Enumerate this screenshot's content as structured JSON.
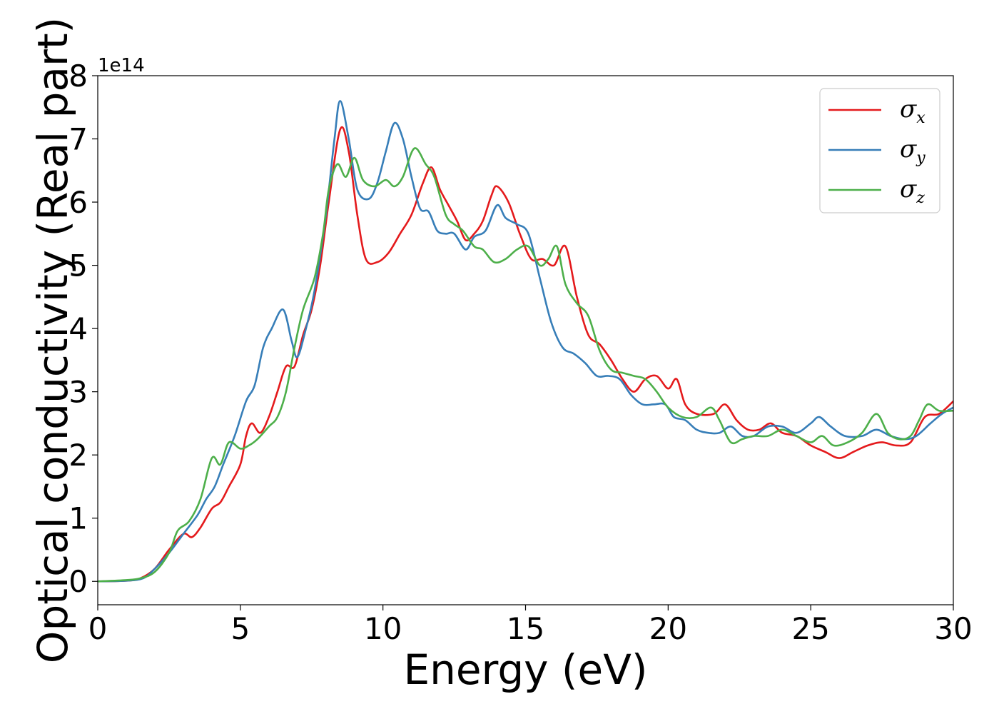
{
  "chart_data": {
    "type": "line",
    "title": "",
    "xlabel": "Energy (eV)",
    "ylabel": "Optical conductivity (Real part)",
    "y_offset_text": "1e14",
    "xlim": [
      0,
      30
    ],
    "ylim": [
      -0.37,
      8.0
    ],
    "xticks": [
      0,
      5,
      10,
      15,
      20,
      25,
      30
    ],
    "yticks": [
      0,
      1,
      2,
      3,
      4,
      5,
      6,
      7,
      8
    ],
    "grid": false,
    "legend_position": "top-right",
    "series": [
      {
        "name": "σ",
        "name_sub": "x",
        "color": "#e41a1c",
        "points": [
          [
            0,
            0
          ],
          [
            1,
            0.01
          ],
          [
            1.5,
            0.05
          ],
          [
            2,
            0.2
          ],
          [
            2.5,
            0.5
          ],
          [
            3,
            0.75
          ],
          [
            3.3,
            0.7
          ],
          [
            3.6,
            0.85
          ],
          [
            4,
            1.15
          ],
          [
            4.3,
            1.25
          ],
          [
            4.6,
            1.5
          ],
          [
            5,
            1.85
          ],
          [
            5.2,
            2.3
          ],
          [
            5.4,
            2.5
          ],
          [
            5.7,
            2.35
          ],
          [
            6,
            2.6
          ],
          [
            6.3,
            3.0
          ],
          [
            6.6,
            3.4
          ],
          [
            6.9,
            3.4
          ],
          [
            7.2,
            3.9
          ],
          [
            7.5,
            4.3
          ],
          [
            7.8,
            5.0
          ],
          [
            8.1,
            6.0
          ],
          [
            8.5,
            7.15
          ],
          [
            8.8,
            6.8
          ],
          [
            9.1,
            5.8
          ],
          [
            9.4,
            5.1
          ],
          [
            9.8,
            5.05
          ],
          [
            10.2,
            5.2
          ],
          [
            10.6,
            5.5
          ],
          [
            11,
            5.8
          ],
          [
            11.4,
            6.3
          ],
          [
            11.7,
            6.55
          ],
          [
            12,
            6.2
          ],
          [
            12.3,
            5.95
          ],
          [
            12.6,
            5.7
          ],
          [
            12.9,
            5.4
          ],
          [
            13.2,
            5.5
          ],
          [
            13.5,
            5.7
          ],
          [
            13.8,
            6.1
          ],
          [
            14,
            6.25
          ],
          [
            14.4,
            6.0
          ],
          [
            14.8,
            5.5
          ],
          [
            15.2,
            5.1
          ],
          [
            15.6,
            5.1
          ],
          [
            16,
            5.0
          ],
          [
            16.4,
            5.3
          ],
          [
            16.8,
            4.5
          ],
          [
            17.2,
            3.9
          ],
          [
            17.6,
            3.75
          ],
          [
            18,
            3.5
          ],
          [
            18.4,
            3.2
          ],
          [
            18.8,
            3.0
          ],
          [
            19.2,
            3.2
          ],
          [
            19.6,
            3.25
          ],
          [
            20,
            3.05
          ],
          [
            20.3,
            3.2
          ],
          [
            20.6,
            2.8
          ],
          [
            21,
            2.65
          ],
          [
            21.6,
            2.65
          ],
          [
            22,
            2.8
          ],
          [
            22.4,
            2.55
          ],
          [
            22.8,
            2.4
          ],
          [
            23.2,
            2.4
          ],
          [
            23.6,
            2.5
          ],
          [
            24,
            2.35
          ],
          [
            24.5,
            2.3
          ],
          [
            25,
            2.15
          ],
          [
            25.5,
            2.05
          ],
          [
            26,
            1.95
          ],
          [
            26.5,
            2.05
          ],
          [
            27,
            2.15
          ],
          [
            27.5,
            2.2
          ],
          [
            28,
            2.15
          ],
          [
            28.5,
            2.2
          ],
          [
            29,
            2.6
          ],
          [
            29.5,
            2.65
          ],
          [
            30,
            2.85
          ]
        ]
      },
      {
        "name": "σ",
        "name_sub": "y",
        "color": "#377eb8",
        "points": [
          [
            0,
            0
          ],
          [
            1,
            0.01
          ],
          [
            1.6,
            0.05
          ],
          [
            2,
            0.2
          ],
          [
            2.5,
            0.45
          ],
          [
            3,
            0.75
          ],
          [
            3.5,
            1.05
          ],
          [
            3.8,
            1.3
          ],
          [
            4.1,
            1.5
          ],
          [
            4.4,
            1.85
          ],
          [
            4.8,
            2.3
          ],
          [
            5.2,
            2.85
          ],
          [
            5.5,
            3.1
          ],
          [
            5.8,
            3.7
          ],
          [
            6.1,
            4.0
          ],
          [
            6.5,
            4.3
          ],
          [
            6.8,
            3.8
          ],
          [
            7,
            3.55
          ],
          [
            7.3,
            4.0
          ],
          [
            7.6,
            4.6
          ],
          [
            8,
            5.8
          ],
          [
            8.3,
            7.0
          ],
          [
            8.5,
            7.6
          ],
          [
            8.8,
            7.0
          ],
          [
            9.1,
            6.2
          ],
          [
            9.5,
            6.05
          ],
          [
            9.8,
            6.3
          ],
          [
            10.1,
            6.8
          ],
          [
            10.4,
            7.25
          ],
          [
            10.7,
            7.0
          ],
          [
            11,
            6.4
          ],
          [
            11.3,
            5.9
          ],
          [
            11.6,
            5.85
          ],
          [
            11.9,
            5.55
          ],
          [
            12.2,
            5.5
          ],
          [
            12.5,
            5.5
          ],
          [
            12.9,
            5.25
          ],
          [
            13.2,
            5.45
          ],
          [
            13.6,
            5.55
          ],
          [
            14,
            5.95
          ],
          [
            14.3,
            5.75
          ],
          [
            14.7,
            5.65
          ],
          [
            15.1,
            5.5
          ],
          [
            15.5,
            4.8
          ],
          [
            15.9,
            4.1
          ],
          [
            16.3,
            3.7
          ],
          [
            16.7,
            3.6
          ],
          [
            17.1,
            3.45
          ],
          [
            17.5,
            3.25
          ],
          [
            17.9,
            3.25
          ],
          [
            18.3,
            3.2
          ],
          [
            18.7,
            2.95
          ],
          [
            19.1,
            2.8
          ],
          [
            19.5,
            2.8
          ],
          [
            19.9,
            2.8
          ],
          [
            20.2,
            2.6
          ],
          [
            20.6,
            2.55
          ],
          [
            21,
            2.4
          ],
          [
            21.4,
            2.35
          ],
          [
            21.8,
            2.35
          ],
          [
            22.2,
            2.45
          ],
          [
            22.6,
            2.3
          ],
          [
            23,
            2.3
          ],
          [
            23.5,
            2.45
          ],
          [
            24,
            2.45
          ],
          [
            24.5,
            2.35
          ],
          [
            25,
            2.5
          ],
          [
            25.3,
            2.6
          ],
          [
            25.7,
            2.45
          ],
          [
            26.2,
            2.3
          ],
          [
            26.8,
            2.3
          ],
          [
            27.3,
            2.4
          ],
          [
            27.8,
            2.3
          ],
          [
            28.3,
            2.25
          ],
          [
            28.7,
            2.3
          ],
          [
            29.2,
            2.5
          ],
          [
            29.6,
            2.65
          ],
          [
            30,
            2.75
          ]
        ]
      },
      {
        "name": "σ",
        "name_sub": "z",
        "color": "#4daf4a",
        "points": [
          [
            0,
            0
          ],
          [
            1,
            0.02
          ],
          [
            1.5,
            0.05
          ],
          [
            2,
            0.15
          ],
          [
            2.5,
            0.45
          ],
          [
            2.8,
            0.8
          ],
          [
            3.2,
            0.95
          ],
          [
            3.6,
            1.3
          ],
          [
            4,
            1.95
          ],
          [
            4.3,
            1.85
          ],
          [
            4.6,
            2.2
          ],
          [
            5,
            2.1
          ],
          [
            5.3,
            2.15
          ],
          [
            5.6,
            2.25
          ],
          [
            6,
            2.45
          ],
          [
            6.3,
            2.6
          ],
          [
            6.6,
            3.0
          ],
          [
            6.9,
            3.7
          ],
          [
            7.2,
            4.3
          ],
          [
            7.6,
            4.8
          ],
          [
            7.9,
            5.5
          ],
          [
            8.1,
            6.2
          ],
          [
            8.4,
            6.6
          ],
          [
            8.7,
            6.4
          ],
          [
            9,
            6.7
          ],
          [
            9.3,
            6.35
          ],
          [
            9.7,
            6.25
          ],
          [
            10.1,
            6.35
          ],
          [
            10.4,
            6.25
          ],
          [
            10.7,
            6.4
          ],
          [
            11.1,
            6.85
          ],
          [
            11.5,
            6.6
          ],
          [
            11.8,
            6.4
          ],
          [
            12.2,
            5.8
          ],
          [
            12.5,
            5.65
          ],
          [
            12.8,
            5.55
          ],
          [
            13.2,
            5.3
          ],
          [
            13.5,
            5.25
          ],
          [
            13.9,
            5.05
          ],
          [
            14.3,
            5.1
          ],
          [
            14.7,
            5.25
          ],
          [
            15.1,
            5.3
          ],
          [
            15.5,
            5.0
          ],
          [
            15.8,
            5.1
          ],
          [
            16.1,
            5.3
          ],
          [
            16.4,
            4.7
          ],
          [
            16.8,
            4.4
          ],
          [
            17.2,
            4.2
          ],
          [
            17.6,
            3.65
          ],
          [
            18,
            3.35
          ],
          [
            18.4,
            3.3
          ],
          [
            18.8,
            3.25
          ],
          [
            19.2,
            3.2
          ],
          [
            19.6,
            3.0
          ],
          [
            20,
            2.75
          ],
          [
            20.5,
            2.6
          ],
          [
            21,
            2.6
          ],
          [
            21.5,
            2.75
          ],
          [
            21.8,
            2.55
          ],
          [
            22.2,
            2.2
          ],
          [
            22.6,
            2.25
          ],
          [
            23,
            2.3
          ],
          [
            23.5,
            2.3
          ],
          [
            24,
            2.4
          ],
          [
            24.5,
            2.3
          ],
          [
            25,
            2.2
          ],
          [
            25.4,
            2.3
          ],
          [
            25.8,
            2.15
          ],
          [
            26.3,
            2.2
          ],
          [
            26.8,
            2.35
          ],
          [
            27.3,
            2.65
          ],
          [
            27.7,
            2.35
          ],
          [
            28.1,
            2.25
          ],
          [
            28.5,
            2.3
          ],
          [
            28.8,
            2.55
          ],
          [
            29.1,
            2.8
          ],
          [
            29.5,
            2.7
          ],
          [
            30,
            2.7
          ]
        ]
      }
    ]
  }
}
